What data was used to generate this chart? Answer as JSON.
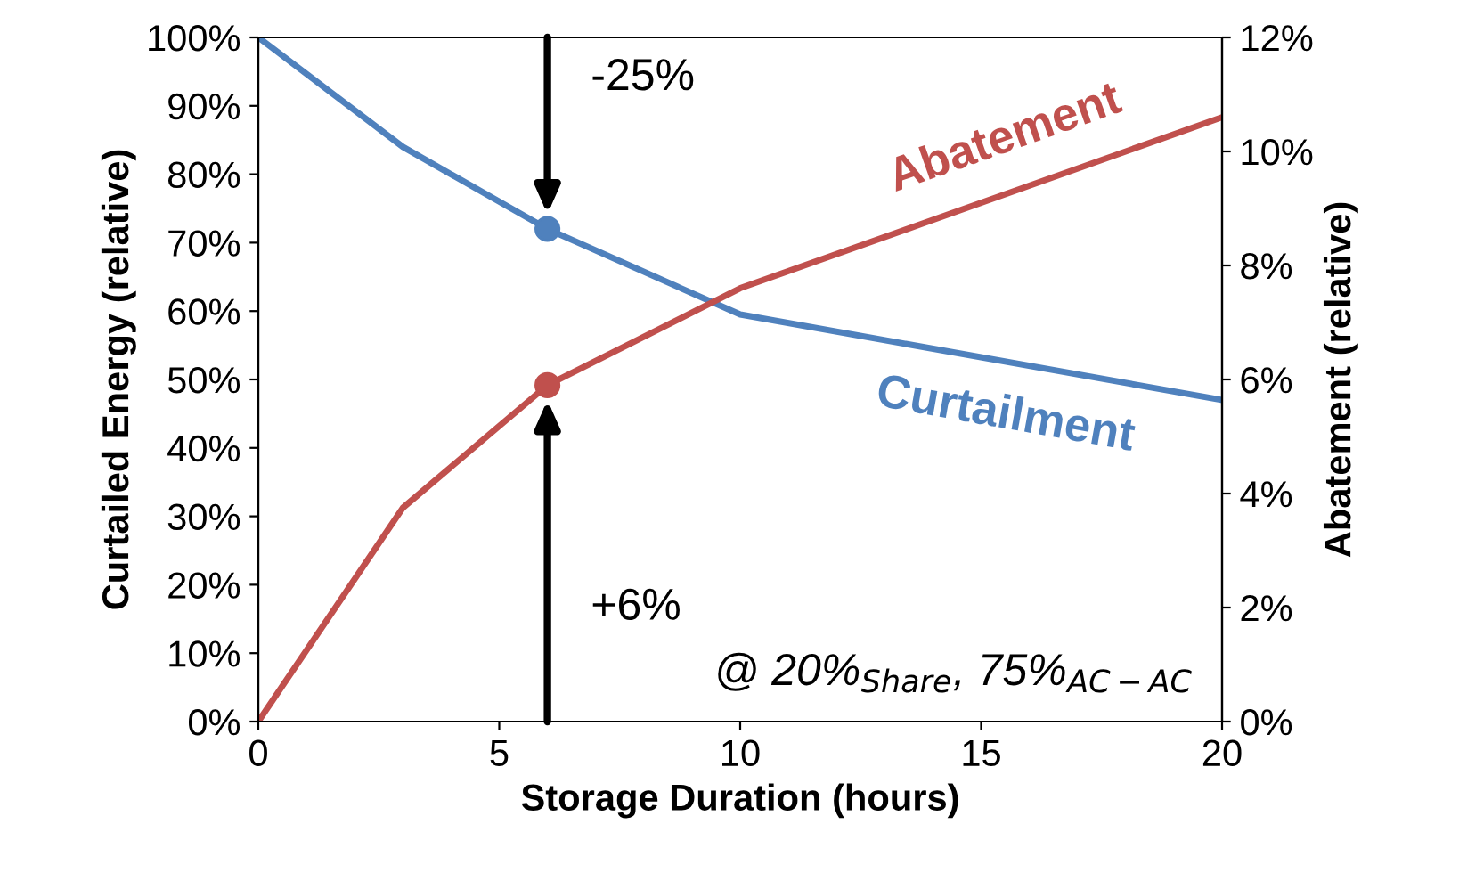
{
  "chart_data": {
    "type": "line",
    "xlabel": "Storage Duration (hours)",
    "ylabel": "Curtailed Energy (relative)",
    "y2label": "Abatement (relative)",
    "x": [
      0,
      3,
      6,
      10,
      20
    ],
    "series": [
      {
        "name": "Curtailment",
        "color": "#4f81bd",
        "values": [
          100,
          84,
          72,
          59.5,
          47
        ]
      },
      {
        "name": "Abatement",
        "color": "#c0504d",
        "values": [
          0,
          3.75,
          5.9,
          7.6,
          10.6
        ],
        "axis": "y2"
      },
      {
        "type": "scatter",
        "color": "#4f81bd",
        "x": [
          6
        ],
        "values": [
          72
        ],
        "marker": "circle"
      },
      {
        "type": "scatter",
        "color": "#c0504d",
        "x": [
          6
        ],
        "values": [
          5.9
        ],
        "axis": "y2",
        "marker": "circle"
      }
    ],
    "xlim": [
      0,
      20
    ],
    "xticks": [
      0,
      5,
      10,
      15,
      20
    ],
    "ylim": [
      0,
      100
    ],
    "yticks": [
      {
        "value": 0,
        "label": "0%"
      },
      {
        "value": 10,
        "label": "10%"
      },
      {
        "value": 20,
        "label": "20%"
      },
      {
        "value": 30,
        "label": "30%"
      },
      {
        "value": 40,
        "label": "40%"
      },
      {
        "value": 50,
        "label": "50%"
      },
      {
        "value": 60,
        "label": "60%"
      },
      {
        "value": 70,
        "label": "70%"
      },
      {
        "value": 80,
        "label": "80%"
      },
      {
        "value": 90,
        "label": "90%"
      },
      {
        "value": 100,
        "label": "100%"
      }
    ],
    "y2lim": [
      0,
      12
    ],
    "y2ticks": [
      {
        "value": 0,
        "label": "0%"
      },
      {
        "value": 2,
        "label": "2%"
      },
      {
        "value": 4,
        "label": "4%"
      },
      {
        "value": 6,
        "label": "6%"
      },
      {
        "value": 8,
        "label": "8%"
      },
      {
        "value": 10,
        "label": "10%"
      },
      {
        "value": 12,
        "label": "12%"
      }
    ],
    "annotations": [
      "-25%",
      "+6%",
      "@ 20%$_{Share}$, 75%$_{AC−AC}$"
    ],
    "grid": false,
    "legend": false,
    "line_style": "solid"
  }
}
